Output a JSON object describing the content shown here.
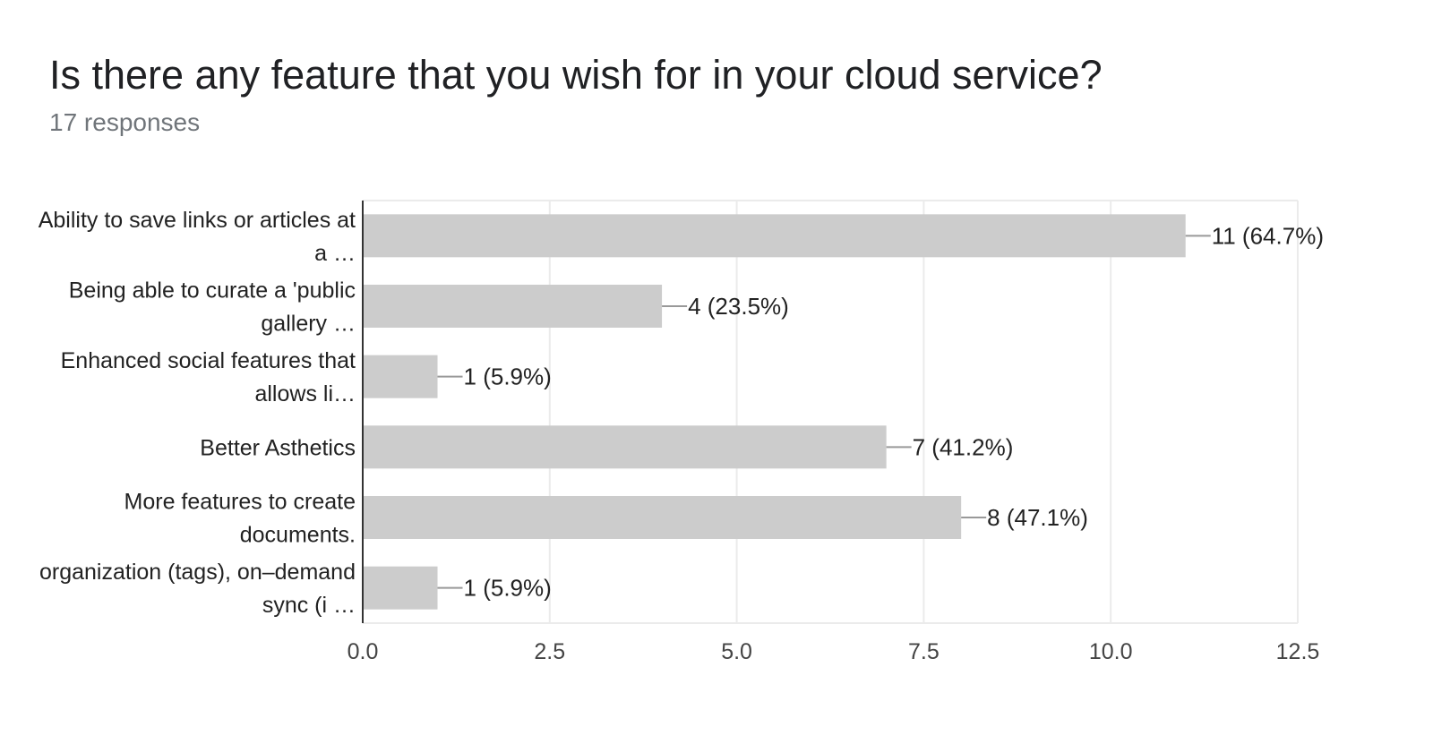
{
  "header": {
    "title": "Is there any feature that you wish for in your cloud service?",
    "responses": "17 responses"
  },
  "colors": {
    "bar": "#cccccc",
    "grid": "#ebebeb",
    "axis": "#333333",
    "text": "#222222",
    "tick_text": "#444444",
    "leader": "#999999"
  },
  "chart_data": {
    "type": "bar",
    "orientation": "horizontal",
    "categories": [
      [
        "Ability to save links or articles at",
        "a …"
      ],
      [
        "Being able to curate a 'public",
        "gallery …"
      ],
      [
        "Enhanced social features that",
        "allows li…"
      ],
      [
        "Better Asthetics"
      ],
      [
        "More features to create",
        "documents."
      ],
      [
        "organization (tags), on–demand",
        "sync (i …"
      ]
    ],
    "values": [
      11,
      4,
      1,
      7,
      8,
      1
    ],
    "data_labels": [
      "11 (64.7%)",
      "4 (23.5%)",
      "1 (5.9%)",
      "7 (41.2%)",
      "8 (47.1%)",
      "1 (5.9%)"
    ],
    "xlim": [
      0,
      12.5
    ],
    "xticks": [
      0,
      2.5,
      5,
      7.5,
      10,
      12.5
    ],
    "xtick_labels": [
      "0.0",
      "2.5",
      "5.0",
      "7.5",
      "10.0",
      "12.5"
    ],
    "grid": true,
    "legend": "none"
  }
}
